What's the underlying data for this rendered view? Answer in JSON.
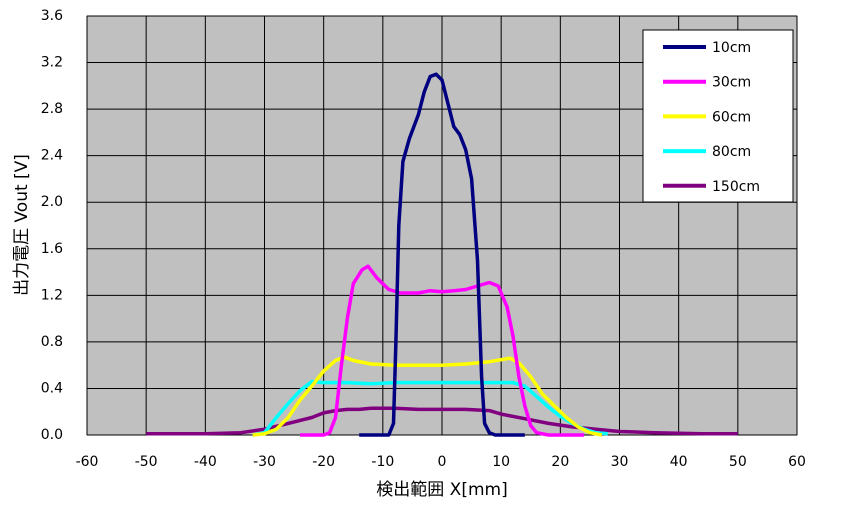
{
  "chart_data": {
    "type": "line",
    "xlabel": "検出範囲 X[mm]",
    "ylabel": "出力電圧 Vout [V]",
    "xlim": [
      -60,
      60
    ],
    "xticks": [
      -60,
      -50,
      -40,
      -30,
      -20,
      -10,
      0,
      10,
      20,
      30,
      40,
      50,
      60
    ],
    "ylim": [
      0,
      3.6
    ],
    "yticks": [
      {
        "value": 0,
        "label": "0.0"
      },
      {
        "value": 0.4,
        "label": "0.4"
      },
      {
        "value": 0.8,
        "label": "0.8"
      },
      {
        "value": 1.2,
        "label": "1.2"
      },
      {
        "value": 1.6,
        "label": "1.6"
      },
      {
        "value": 2,
        "label": "2.0"
      },
      {
        "value": 2.4,
        "label": "2.4"
      },
      {
        "value": 2.8,
        "label": "2.8"
      },
      {
        "value": 3.2,
        "label": "3.2"
      },
      {
        "value": 3.6,
        "label": "3.6"
      }
    ],
    "grid": true,
    "legend": "upper right",
    "series": [
      {
        "name": "10cm",
        "color": "#000080",
        "x": [
          -14,
          -9,
          -8.2,
          -7.8,
          -7.3,
          -6.6,
          -5.5,
          -4,
          -3,
          -2,
          -1,
          0,
          1,
          2,
          3,
          4,
          5,
          6,
          6.7,
          7.2,
          8,
          9,
          14
        ],
        "values": [
          0,
          0,
          0.1,
          0.8,
          1.8,
          2.35,
          2.55,
          2.75,
          2.95,
          3.08,
          3.1,
          3.05,
          2.85,
          2.65,
          2.58,
          2.45,
          2.2,
          1.5,
          0.5,
          0.1,
          0.02,
          0,
          0
        ]
      },
      {
        "name": "30cm",
        "color": "#ff00ff",
        "x": [
          -24,
          -20,
          -19,
          -18,
          -17,
          -16,
          -15,
          -13.5,
          -12.5,
          -11,
          -9,
          -7,
          -4,
          -2,
          0,
          2,
          4,
          6,
          8,
          9.5,
          11,
          12,
          13,
          14,
          15,
          16,
          18,
          24
        ],
        "values": [
          0,
          0,
          0.02,
          0.15,
          0.6,
          1.0,
          1.3,
          1.42,
          1.45,
          1.35,
          1.25,
          1.22,
          1.22,
          1.24,
          1.23,
          1.24,
          1.25,
          1.28,
          1.31,
          1.28,
          1.1,
          0.85,
          0.5,
          0.25,
          0.08,
          0.02,
          0,
          0
        ]
      },
      {
        "name": "60cm",
        "color": "#ffff00",
        "x": [
          -32,
          -30,
          -28,
          -26,
          -24,
          -22,
          -20,
          -18,
          -16.5,
          -15,
          -12,
          -8,
          -4,
          0,
          4,
          8,
          11.5,
          13,
          15,
          17,
          19,
          21,
          23,
          25,
          27
        ],
        "values": [
          0,
          0.01,
          0.05,
          0.15,
          0.3,
          0.42,
          0.55,
          0.64,
          0.67,
          0.64,
          0.61,
          0.6,
          0.6,
          0.6,
          0.61,
          0.63,
          0.66,
          0.62,
          0.5,
          0.35,
          0.25,
          0.15,
          0.07,
          0.02,
          0
        ]
      },
      {
        "name": "80cm",
        "color": "#00ffff",
        "x": [
          -32,
          -30,
          -28,
          -26,
          -24,
          -22,
          -20,
          -16,
          -12,
          -8,
          -4,
          0,
          4,
          8,
          12,
          14,
          16,
          18,
          20,
          22,
          24,
          26,
          28
        ],
        "values": [
          0,
          0.02,
          0.15,
          0.27,
          0.38,
          0.46,
          0.45,
          0.45,
          0.44,
          0.45,
          0.45,
          0.45,
          0.45,
          0.45,
          0.45,
          0.42,
          0.33,
          0.24,
          0.16,
          0.1,
          0.05,
          0.02,
          0.01
        ]
      },
      {
        "name": "150cm",
        "color": "#800080",
        "x": [
          -50,
          -40,
          -34,
          -30,
          -26,
          -22,
          -20,
          -18,
          -16,
          -14,
          -12,
          -8,
          -4,
          0,
          4,
          8,
          10,
          14,
          18,
          22,
          26,
          30,
          36,
          44,
          50
        ],
        "values": [
          0.01,
          0.01,
          0.02,
          0.05,
          0.1,
          0.15,
          0.19,
          0.21,
          0.22,
          0.22,
          0.23,
          0.23,
          0.22,
          0.22,
          0.22,
          0.21,
          0.18,
          0.14,
          0.1,
          0.07,
          0.05,
          0.03,
          0.02,
          0.01,
          0.01
        ]
      }
    ]
  }
}
